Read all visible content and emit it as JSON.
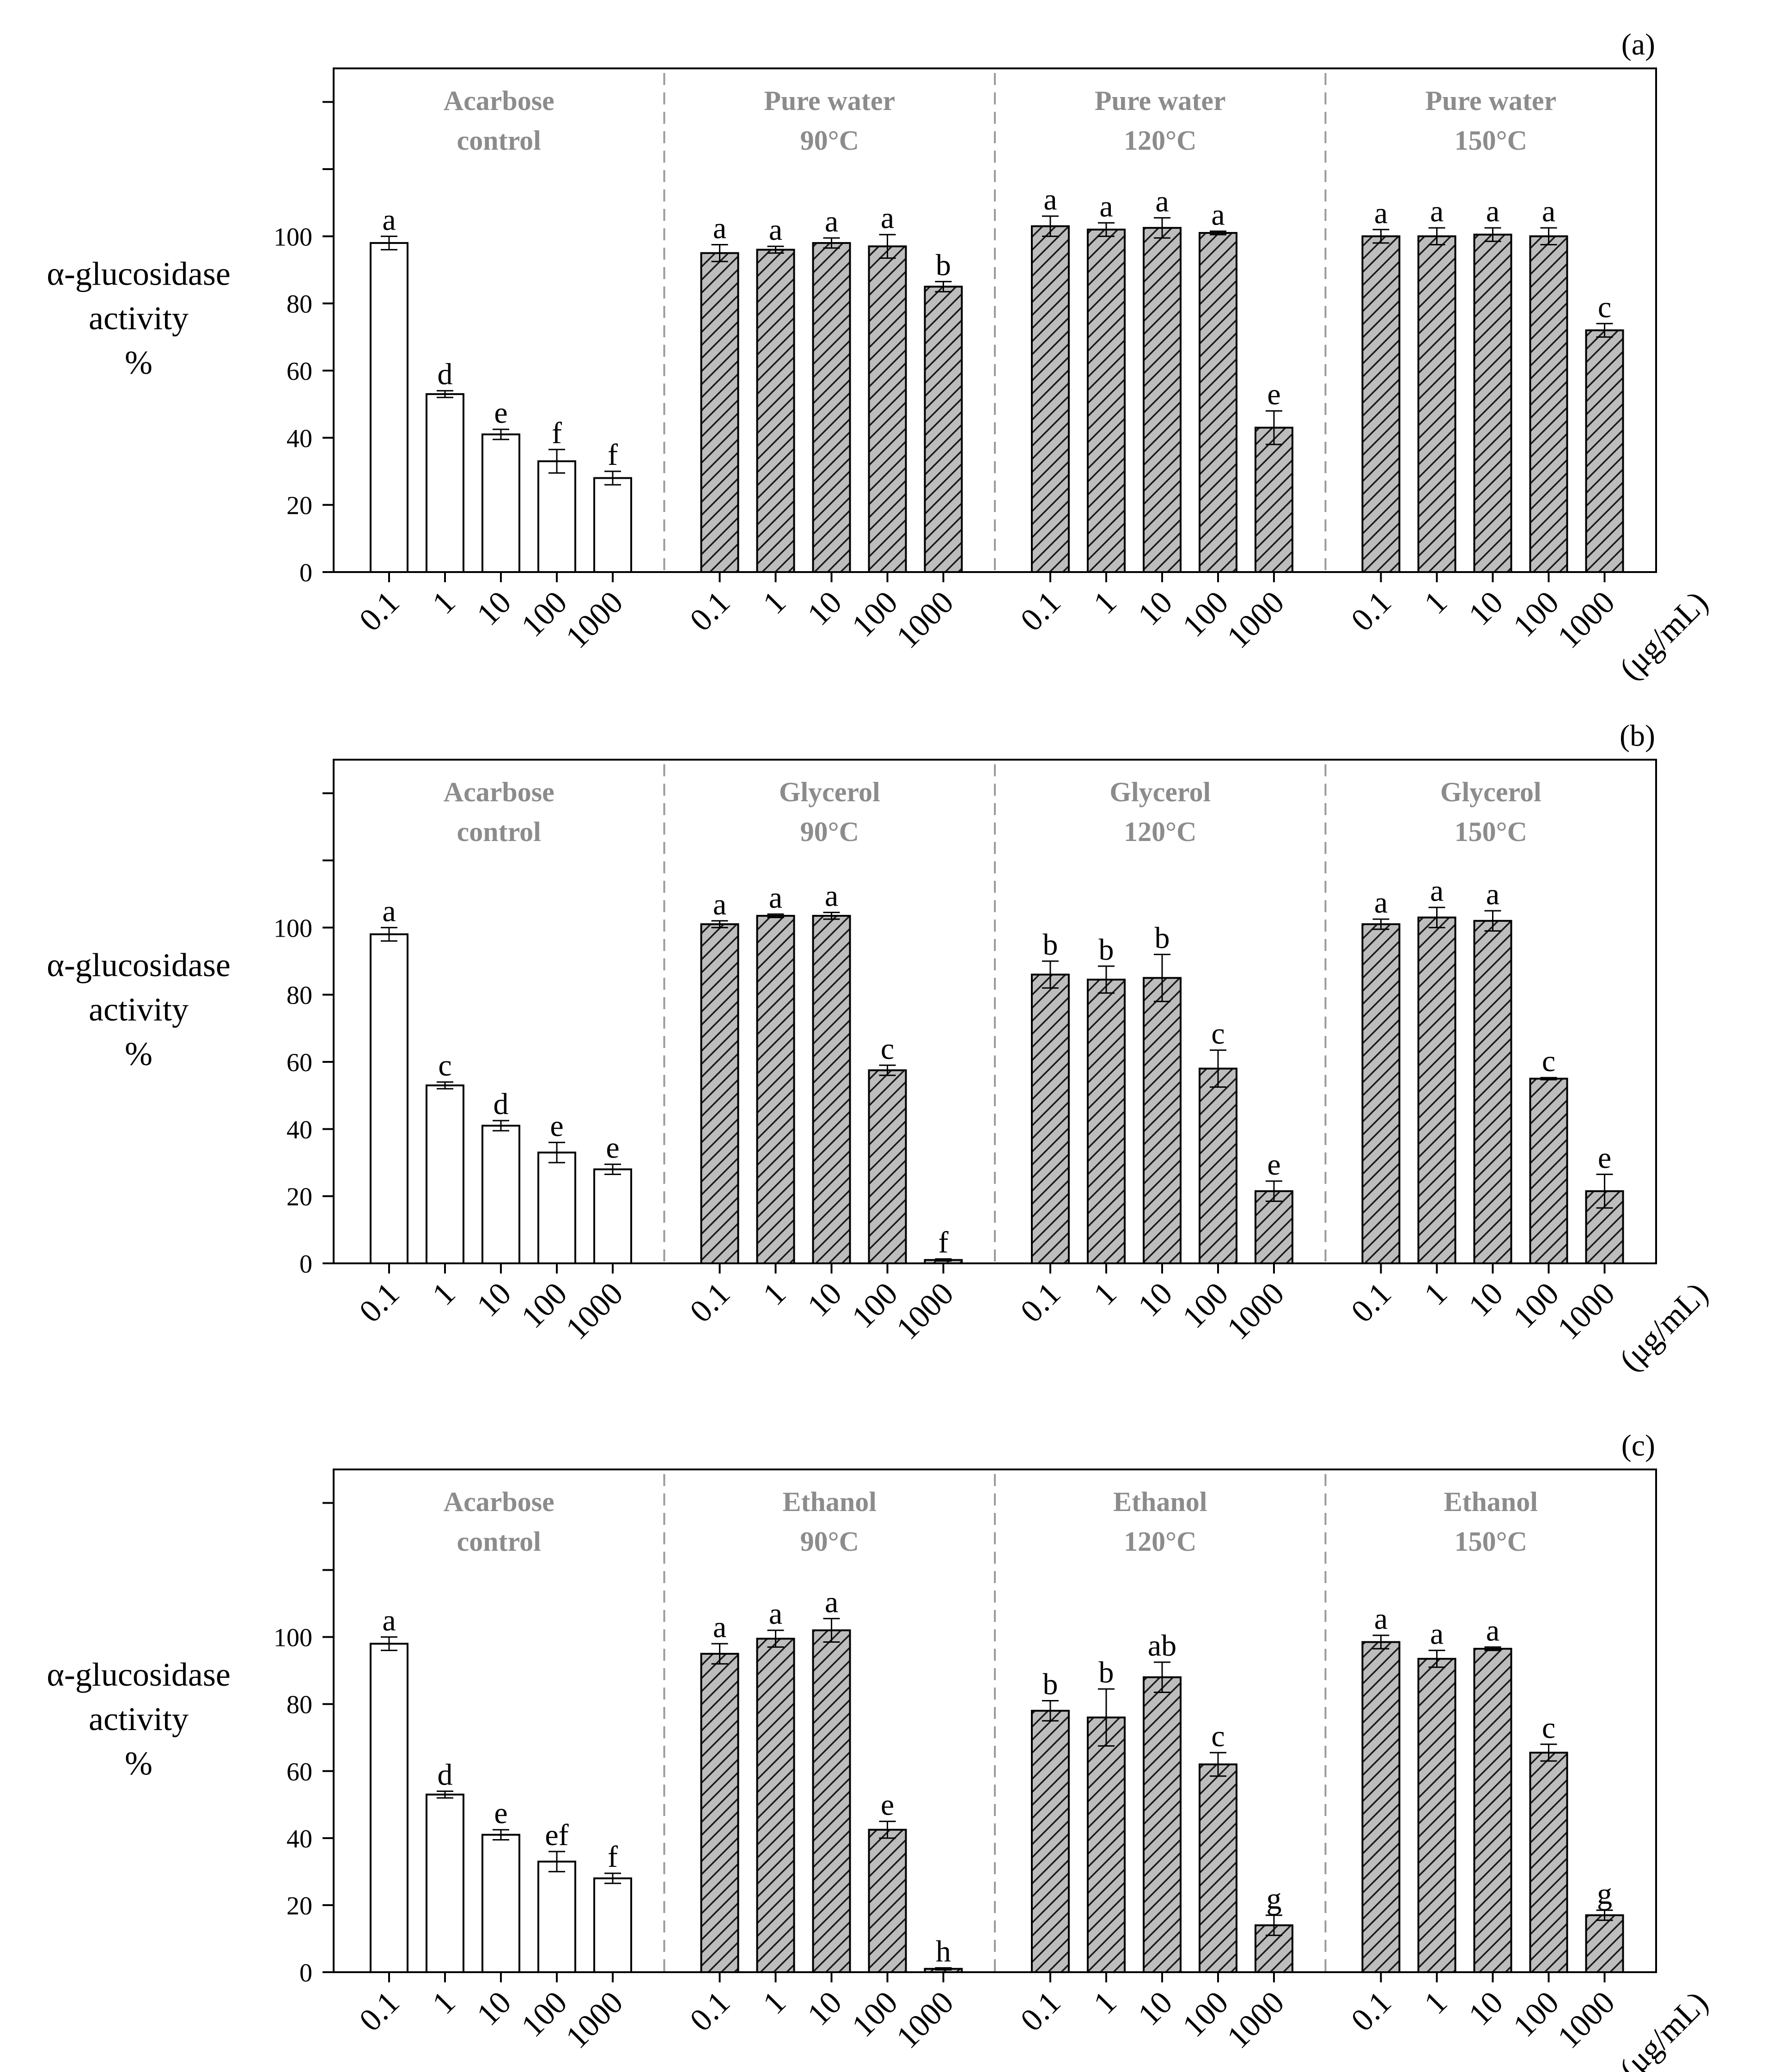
{
  "chart_data": [
    {
      "type": "bar",
      "panel_label": "(a)",
      "ylabel_lines": [
        "α-glucosidase",
        "activity",
        "%"
      ],
      "ylim": [
        0,
        150
      ],
      "yticks": [
        0,
        20,
        40,
        60,
        80,
        100
      ],
      "xunit": "(μg/mL)",
      "categories": [
        "0.1",
        "1",
        "10",
        "100",
        "1000"
      ],
      "series": [
        {
          "name": "Acarbose control",
          "title_lines": [
            "Acarbose",
            "control"
          ],
          "fill": "white",
          "values": [
            98,
            53,
            41,
            33,
            28
          ],
          "errors": [
            2,
            1,
            1.5,
            3.5,
            2
          ],
          "letters": [
            "a",
            "d",
            "e",
            "f",
            "f"
          ]
        },
        {
          "name": "Pure water 90°C",
          "title_lines": [
            "Pure water",
            "90°C"
          ],
          "fill": "hatch",
          "values": [
            95,
            96,
            98,
            97,
            85
          ],
          "errors": [
            2.5,
            1,
            1.5,
            3.5,
            1.5
          ],
          "letters": [
            "a",
            "a",
            "a",
            "a",
            "b"
          ]
        },
        {
          "name": "Pure water 120°C",
          "title_lines": [
            "Pure water",
            "120°C"
          ],
          "fill": "hatch",
          "values": [
            103,
            102,
            102.5,
            101,
            43
          ],
          "errors": [
            3,
            2,
            3,
            0.5,
            5
          ],
          "letters": [
            "a",
            "a",
            "a",
            "a",
            "e"
          ]
        },
        {
          "name": "Pure water 150°C",
          "title_lines": [
            "Pure water",
            "150°C"
          ],
          "fill": "hatch",
          "values": [
            100,
            100,
            100.5,
            100,
            72
          ],
          "errors": [
            2,
            2.5,
            2,
            2.5,
            2
          ],
          "letters": [
            "a",
            "a",
            "a",
            "a",
            "c"
          ]
        }
      ]
    },
    {
      "type": "bar",
      "panel_label": "(b)",
      "ylabel_lines": [
        "α-glucosidase",
        "activity",
        "%"
      ],
      "ylim": [
        0,
        150
      ],
      "yticks": [
        0,
        20,
        40,
        60,
        80,
        100
      ],
      "xunit": "(μg/mL)",
      "categories": [
        "0.1",
        "1",
        "10",
        "100",
        "1000"
      ],
      "series": [
        {
          "name": "Acarbose control",
          "title_lines": [
            "Acarbose",
            "control"
          ],
          "fill": "white",
          "values": [
            98,
            53,
            41,
            33,
            28
          ],
          "errors": [
            2,
            1,
            1.5,
            3,
            1.5
          ],
          "letters": [
            "a",
            "c",
            "d",
            "e",
            "e"
          ]
        },
        {
          "name": "Glycerol 90°C",
          "title_lines": [
            "Glycerol",
            "90°C"
          ],
          "fill": "hatch",
          "values": [
            101,
            103.5,
            103.5,
            57.5,
            1
          ],
          "errors": [
            1,
            0.5,
            1,
            1.5,
            0.3
          ],
          "letters": [
            "a",
            "a",
            "a",
            "c",
            "f"
          ]
        },
        {
          "name": "Glycerol 120°C",
          "title_lines": [
            "Glycerol",
            "120°C"
          ],
          "fill": "hatch",
          "values": [
            86,
            84.5,
            85,
            58,
            21.5
          ],
          "errors": [
            4,
            4,
            7,
            5.5,
            3
          ],
          "letters": [
            "b",
            "b",
            "b",
            "c",
            "e"
          ]
        },
        {
          "name": "Glycerol 150°C",
          "title_lines": [
            "Glycerol",
            "150°C"
          ],
          "fill": "hatch",
          "values": [
            101,
            103,
            102,
            55,
            21.5
          ],
          "errors": [
            1.5,
            3,
            3,
            0.3,
            5
          ],
          "letters": [
            "a",
            "a",
            "a",
            "c",
            "e"
          ]
        }
      ]
    },
    {
      "type": "bar",
      "panel_label": "(c)",
      "ylabel_lines": [
        "α-glucosidase",
        "activity",
        "%"
      ],
      "ylim": [
        0,
        150
      ],
      "yticks": [
        0,
        20,
        40,
        60,
        80,
        100
      ],
      "xunit": "(μg/mL)",
      "categories": [
        "0.1",
        "1",
        "10",
        "100",
        "1000"
      ],
      "series": [
        {
          "name": "Acarbose control",
          "title_lines": [
            "Acarbose",
            "control"
          ],
          "fill": "white",
          "values": [
            98,
            53,
            41,
            33,
            28
          ],
          "errors": [
            2,
            1,
            1.5,
            3,
            1.5
          ],
          "letters": [
            "a",
            "d",
            "e",
            "ef",
            "f"
          ]
        },
        {
          "name": "Ethanol 90°C",
          "title_lines": [
            "Ethanol",
            "90°C"
          ],
          "fill": "hatch",
          "values": [
            95,
            99.5,
            102,
            42.5,
            1
          ],
          "errors": [
            3,
            2.5,
            3.5,
            2.5,
            0.3
          ],
          "letters": [
            "a",
            "a",
            "a",
            "e",
            "h"
          ]
        },
        {
          "name": "Ethanol 120°C",
          "title_lines": [
            "Ethanol",
            "120°C"
          ],
          "fill": "hatch",
          "values": [
            78,
            76,
            88,
            62,
            14
          ],
          "errors": [
            3,
            8.5,
            4.5,
            3.5,
            3
          ],
          "letters": [
            "b",
            "b",
            "ab",
            "c",
            "g"
          ]
        },
        {
          "name": "Ethanol 150°C",
          "title_lines": [
            "Ethanol",
            "150°C"
          ],
          "fill": "hatch",
          "values": [
            98.5,
            93.5,
            96.5,
            65.5,
            17
          ],
          "errors": [
            2,
            2.5,
            0.5,
            2.5,
            1.5
          ],
          "letters": [
            "a",
            "a",
            "a",
            "c",
            "g"
          ]
        }
      ]
    }
  ]
}
